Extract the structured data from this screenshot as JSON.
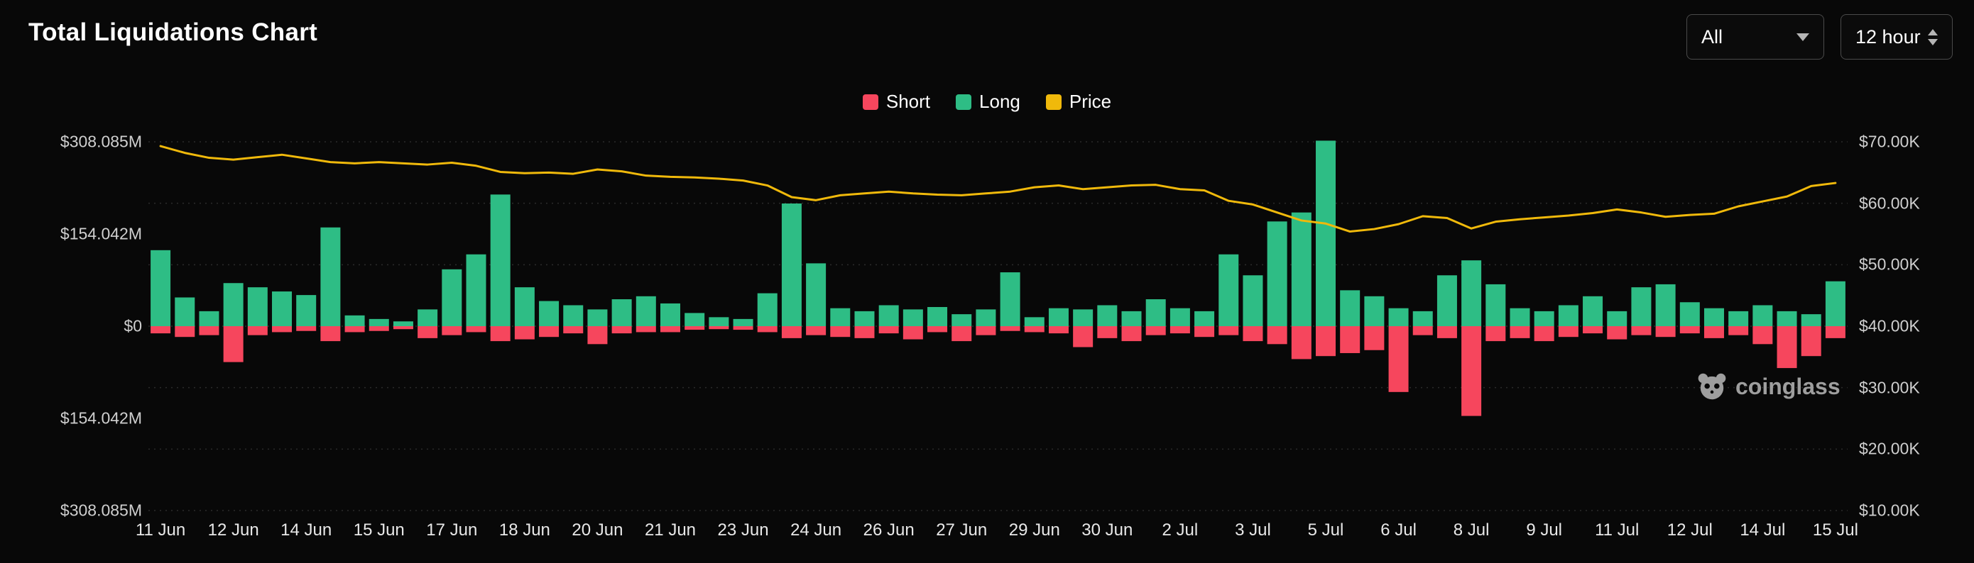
{
  "page": {
    "title": "Total Liquidations Chart"
  },
  "controls": {
    "symbol_dropdown": {
      "value": "All"
    },
    "interval_dropdown": {
      "value": "12 hour"
    }
  },
  "legend": {
    "items": [
      {
        "label": "Short",
        "color": "#F6465D"
      },
      {
        "label": "Long",
        "color": "#2EBD85"
      },
      {
        "label": "Price",
        "color": "#F0B90B"
      }
    ]
  },
  "watermark": {
    "text": "coinglass"
  },
  "chart_data": {
    "type": "bar",
    "subtype": "diverging-bars-with-price-line-overlay",
    "interval": "12h",
    "grid": "dotted-horizontal",
    "legend_position": "top-center",
    "bars_per_x_tick": 3,
    "x_tick_labels": [
      "11 Jun",
      "12 Jun",
      "14 Jun",
      "15 Jun",
      "17 Jun",
      "18 Jun",
      "20 Jun",
      "21 Jun",
      "23 Jun",
      "24 Jun",
      "26 Jun",
      "27 Jun",
      "29 Jun",
      "30 Jun",
      "2 Jul",
      "3 Jul",
      "5 Jul",
      "6 Jul",
      "8 Jul",
      "9 Jul",
      "11 Jul",
      "12 Jul",
      "14 Jul",
      "15 Jul"
    ],
    "left_axis": {
      "tick_labels": [
        "$308.085M",
        "$154.042M",
        "$0",
        "$154.042M",
        "$308.085M"
      ],
      "top_value_m": 308.085,
      "zero_tick_index": 2
    },
    "right_axis": {
      "tick_labels": [
        "$70.00K",
        "$60.00K",
        "$50.00K",
        "$40.00K",
        "$30.00K",
        "$20.00K",
        "$10.00K"
      ],
      "top_value_k": 70,
      "bottom_value_k": 10
    },
    "series": [
      {
        "name": "Long",
        "type": "bar",
        "color": "#2EBD85",
        "unit": "USD millions",
        "values": [
          127,
          48,
          25,
          72,
          65,
          58,
          52,
          165,
          18,
          12,
          8,
          28,
          95,
          120,
          220,
          65,
          42,
          35,
          28,
          45,
          50,
          38,
          22,
          15,
          12,
          55,
          205,
          105,
          30,
          25,
          35,
          28,
          32,
          20,
          28,
          90,
          15,
          30,
          28,
          35,
          25,
          45,
          30,
          25,
          120,
          85,
          175,
          190,
          310,
          60,
          50,
          30,
          25,
          85,
          110,
          70,
          30,
          25,
          35,
          50,
          25,
          65,
          70,
          40,
          30,
          25,
          35,
          25,
          20,
          75
        ]
      },
      {
        "name": "Short",
        "type": "bar",
        "color": "#F6465D",
        "unit": "USD millions",
        "values": [
          -12,
          -18,
          -15,
          -60,
          -15,
          -10,
          -8,
          -25,
          -10,
          -8,
          -5,
          -20,
          -15,
          -10,
          -25,
          -22,
          -18,
          -12,
          -30,
          -12,
          -10,
          -10,
          -6,
          -5,
          -6,
          -10,
          -20,
          -15,
          -18,
          -20,
          -12,
          -22,
          -10,
          -25,
          -15,
          -8,
          -10,
          -12,
          -35,
          -20,
          -25,
          -15,
          -12,
          -18,
          -15,
          -25,
          -30,
          -55,
          -50,
          -45,
          -40,
          -110,
          -15,
          -20,
          -150,
          -25,
          -20,
          -25,
          -18,
          -12,
          -22,
          -15,
          -18,
          -12,
          -20,
          -15,
          -30,
          -70,
          -50,
          -20
        ]
      },
      {
        "name": "Price",
        "type": "line",
        "color": "#F0B90B",
        "unit": "USD thousands",
        "values": [
          69.3,
          68.2,
          67.4,
          67.1,
          67.5,
          67.9,
          67.3,
          66.7,
          66.5,
          66.7,
          66.5,
          66.3,
          66.6,
          66.1,
          65.1,
          64.9,
          65.0,
          64.8,
          65.5,
          65.2,
          64.5,
          64.3,
          64.2,
          64.0,
          63.7,
          62.9,
          61.0,
          60.5,
          61.3,
          61.6,
          61.9,
          61.6,
          61.4,
          61.3,
          61.6,
          61.9,
          62.6,
          62.9,
          62.3,
          62.6,
          62.9,
          63.0,
          62.3,
          62.1,
          60.4,
          59.8,
          58.5,
          57.2,
          56.7,
          55.4,
          55.8,
          56.6,
          57.9,
          57.6,
          55.9,
          57.0,
          57.4,
          57.7,
          58.0,
          58.4,
          59.0,
          58.5,
          57.8,
          58.1,
          58.3,
          59.5,
          60.3,
          61.1,
          62.8,
          63.3
        ]
      }
    ]
  }
}
